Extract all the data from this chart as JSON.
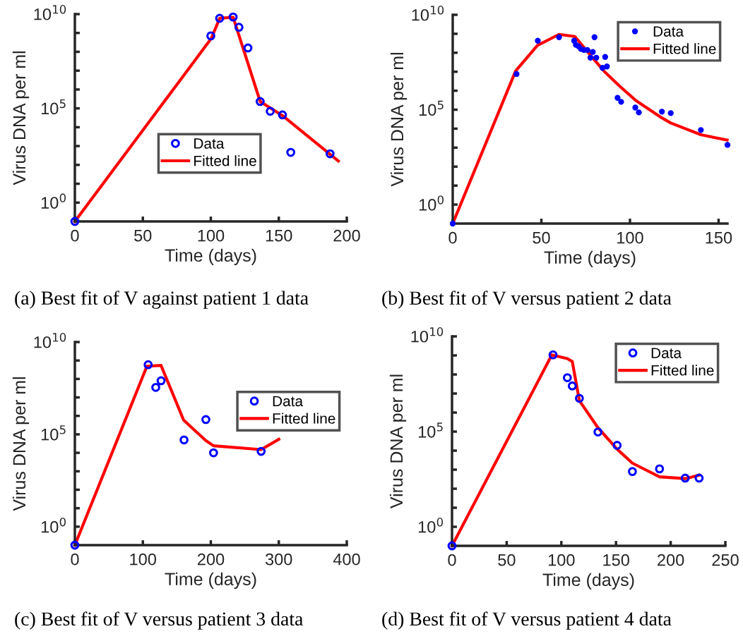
{
  "chart_data": [
    {
      "type": "scatter",
      "xlabel": "Time (days)",
      "ylabel": "Virus DNA per ml",
      "log": "y",
      "xlim": [
        0,
        200
      ],
      "xticks": [
        0,
        50,
        100,
        150,
        200
      ],
      "ylim": [
        0.1,
        10000000000.0
      ],
      "yticks": [
        {
          "value": 1,
          "label": "10$^{0}$"
        },
        {
          "value": 10,
          "label": null
        },
        {
          "value": 100,
          "label": null
        },
        {
          "value": 1000,
          "label": null
        },
        {
          "value": 10000,
          "label": null
        },
        {
          "value": 100000,
          "label": "10$^{5}$"
        },
        {
          "value": 1000000,
          "label": null
        },
        {
          "value": 10000000,
          "label": null
        },
        {
          "value": 100000000,
          "label": null
        },
        {
          "value": 1000000000,
          "label": null
        },
        {
          "value": 10000000000,
          "label": "10$^{10}$"
        }
      ],
      "grid": false,
      "legend": "center",
      "annotations": [
        "(a) Best fit of V against patient 1 data"
      ],
      "series": [
        {
          "name": "Data",
          "marker": "circle",
          "color": "#0000ff",
          "x": [
            0,
            100,
            106.5,
            116.4,
            120.7,
            127.3,
            136.3,
            143.7,
            152.7,
            158.8,
            187.7
          ],
          "values": [
            0.1,
            700000000.0,
            6000000000.0,
            7000000000.0,
            2000000000.0,
            160000000.0,
            230000.0,
            70000.0,
            45000.0,
            460,
            390
          ]
        },
        {
          "name": "Fitted line",
          "type": "line",
          "marker": "none",
          "color": "#ff0000",
          "x": [
            0,
            100.4,
            106.5,
            116.4,
            136.3,
            152.7,
            193.8
          ],
          "values": [
            0.1,
            520000000.0,
            6000000000.0,
            6800000000.0,
            230000.0,
            41000.0,
            160
          ]
        }
      ]
    },
    {
      "type": "scatter",
      "xlabel": "Time (days)",
      "ylabel": "Virus DNA per ml",
      "log": "y",
      "xlim": [
        0,
        155
      ],
      "xticks": [
        0,
        50,
        100,
        150
      ],
      "ylim": [
        0.1,
        10000000000.0
      ],
      "yticks": [
        {
          "value": 1,
          "label": "10$^{0}$"
        },
        {
          "value": 10,
          "label": null
        },
        {
          "value": 100,
          "label": null
        },
        {
          "value": 1000,
          "label": null
        },
        {
          "value": 10000,
          "label": null
        },
        {
          "value": 100000,
          "label": "10$^{5}$"
        },
        {
          "value": 1000000,
          "label": null
        },
        {
          "value": 10000000,
          "label": null
        },
        {
          "value": 100000000,
          "label": null
        },
        {
          "value": 1000000000,
          "label": null
        },
        {
          "value": 10000000000,
          "label": "10$^{10}$"
        }
      ],
      "grid": false,
      "legend": "top right",
      "annotations": [
        "(b) Best fit of V versus patient 2 data"
      ],
      "series": [
        {
          "name": "Data",
          "marker": "dot",
          "color": "#0000ff",
          "x": [
            0,
            36,
            48,
            60,
            68.5,
            69.5,
            71,
            72.3,
            74,
            76,
            79,
            77.7,
            80,
            81,
            86,
            84.5,
            87,
            93,
            95,
            103,
            105,
            118,
            123,
            140,
            155
          ],
          "values": [
            0.1,
            7600000.0,
            430000000.0,
            660000000.0,
            430000000.0,
            260000000.0,
            220000000.0,
            160000000.0,
            140000000.0,
            140000000.0,
            110000000.0,
            55000000.0,
            660000000.0,
            55000000.0,
            60000000.0,
            16000000.0,
            19000000.0,
            420000.0,
            260000.0,
            130000.0,
            72000.0,
            79000.0,
            66000.0,
            8500.0,
            1400.0
          ]
        },
        {
          "name": "Fitted line",
          "type": "line",
          "marker": "none",
          "color": "#ff0000",
          "x": [
            0,
            35.5,
            47.7,
            60,
            68.9,
            77.7,
            85.9,
            94,
            103.6,
            118,
            123,
            140,
            154.8
          ],
          "values": [
            0.1,
            11000000.0,
            240000000.0,
            930000000.0,
            720000000.0,
            74000000.0,
            9500000.0,
            1800000.0,
            290000.0,
            37000.0,
            20000.0,
            4800.0,
            2500.0
          ]
        }
      ]
    },
    {
      "type": "scatter",
      "xlabel": "Time (days)",
      "ylabel": "Virus DNA per ml",
      "log": "y",
      "xlim": [
        0,
        400
      ],
      "xticks": [
        0,
        100,
        200,
        300,
        400
      ],
      "ylim": [
        0.1,
        10000000000.0
      ],
      "yticks": [
        {
          "value": 1,
          "label": "10$^{0}$"
        },
        {
          "value": 10,
          "label": null
        },
        {
          "value": 100,
          "label": null
        },
        {
          "value": 1000,
          "label": null
        },
        {
          "value": 10000,
          "label": null
        },
        {
          "value": 100000,
          "label": "10$^{5}$"
        },
        {
          "value": 1000000,
          "label": null
        },
        {
          "value": 10000000,
          "label": null
        },
        {
          "value": 100000000,
          "label": null
        },
        {
          "value": 1000000000,
          "label": null
        },
        {
          "value": 10000000000,
          "label": "10$^{10}$"
        }
      ],
      "grid": false,
      "legend": "center right",
      "annotations": [
        "(c) Best fit of V versus patient 3 data"
      ],
      "series": [
        {
          "name": "Data",
          "marker": "circle",
          "color": "#0000ff",
          "x": [
            0,
            107.8,
            119,
            126.8,
            160.6,
            192.7,
            204,
            274
          ],
          "values": [
            0.1,
            590000000.0,
            35000000.0,
            80000000.0,
            50000.0,
            630000.0,
            10000.0,
            12000.0
          ]
        },
        {
          "name": "Fitted line",
          "type": "line",
          "marker": "none",
          "color": "#ff0000",
          "x": [
            0,
            106,
            126.8,
            160,
            192.7,
            204,
            274,
            300
          ],
          "values": [
            0.1,
            490000000.0,
            540000000.0,
            590000.0,
            46000.0,
            24000.0,
            15000.0,
            54000.0
          ]
        }
      ]
    },
    {
      "type": "scatter",
      "xlabel": "Time (days)",
      "ylabel": "Virus DNA per ml",
      "log": "y",
      "xlim": [
        0,
        250
      ],
      "xticks": [
        0,
        50,
        100,
        150,
        200,
        250
      ],
      "ylim": [
        0.1,
        10000000000.0
      ],
      "yticks": [
        {
          "value": 1,
          "label": "10$^{0}$"
        },
        {
          "value": 10,
          "label": null
        },
        {
          "value": 100,
          "label": null
        },
        {
          "value": 1000,
          "label": null
        },
        {
          "value": 10000,
          "label": null
        },
        {
          "value": 100000,
          "label": "10$^{5}$"
        },
        {
          "value": 1000000,
          "label": null
        },
        {
          "value": 10000000,
          "label": null
        },
        {
          "value": 100000000,
          "label": null
        },
        {
          "value": 1000000000,
          "label": null
        },
        {
          "value": 10000000000,
          "label": "10$^{10}$"
        }
      ],
      "grid": false,
      "legend": "top right",
      "annotations": [
        "(d) Best fit of V versus patient 4 data"
      ],
      "series": [
        {
          "name": "Data",
          "marker": "circle",
          "color": "#0000ff",
          "x": [
            0,
            92.4,
            105.5,
            110,
            116.5,
            133.5,
            151,
            165,
            189.8,
            213.3,
            226
          ],
          "values": [
            0.1,
            1070000000.0,
            68000000.0,
            25000000.0,
            5600000.0,
            95000.0,
            19000.0,
            800,
            1100,
            360,
            360
          ]
        },
        {
          "name": "Fitted line",
          "type": "line",
          "marker": "none",
          "color": "#ff0000",
          "x": [
            0,
            91.3,
            105.5,
            110,
            116.5,
            133.5,
            151,
            165,
            189.8,
            213.3,
            226
          ],
          "values": [
            0.1,
            1070000000.0,
            680000000.0,
            480000000.0,
            4200000.0,
            160000.0,
            12000.0,
            2200.0,
            420,
            340,
            520
          ]
        }
      ]
    }
  ]
}
